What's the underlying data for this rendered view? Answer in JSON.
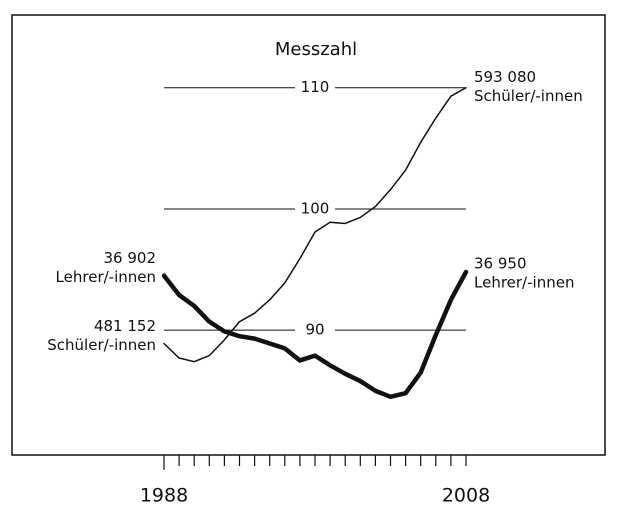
{
  "chart_data": {
    "type": "line",
    "title": "Messzahl",
    "categories": [
      "1988",
      null,
      null,
      null,
      null,
      null,
      null,
      null,
      null,
      null,
      null,
      null,
      null,
      null,
      null,
      null,
      null,
      null,
      null,
      null,
      "2008"
    ],
    "series": [
      {
        "name": "Schüler/-innen",
        "color": "#111111",
        "values": [
          88.9,
          87.7,
          87.4,
          87.9,
          89.2,
          90.7,
          91.4,
          92.5,
          93.9,
          95.9,
          98.1,
          98.9,
          98.8,
          99.3,
          100.2,
          101.6,
          103.2,
          105.5,
          107.5,
          109.3,
          110.0
        ]
      },
      {
        "name": "Lehrer/-innen",
        "color": "#111111",
        "values": [
          94.5,
          92.9,
          92.0,
          90.7,
          89.9,
          89.5,
          89.3,
          88.9,
          88.5,
          87.5,
          87.9,
          87.1,
          86.4,
          85.8,
          85.0,
          84.5,
          84.8,
          86.5,
          89.6,
          92.5,
          94.8
        ]
      }
    ],
    "annotations": [
      {
        "lines": [
          "36 902",
          "Lehrer/-innen"
        ]
      },
      {
        "lines": [
          "481 152",
          "Schüler/-innen"
        ]
      },
      {
        "lines": [
          "593 080",
          "Schüler/-innen"
        ]
      },
      {
        "lines": [
          "36 950",
          "Lehrer/-innen"
        ]
      }
    ],
    "ylim": [
      79.7,
      116
    ],
    "yticks": [
      90,
      100,
      110
    ],
    "grid": true
  }
}
